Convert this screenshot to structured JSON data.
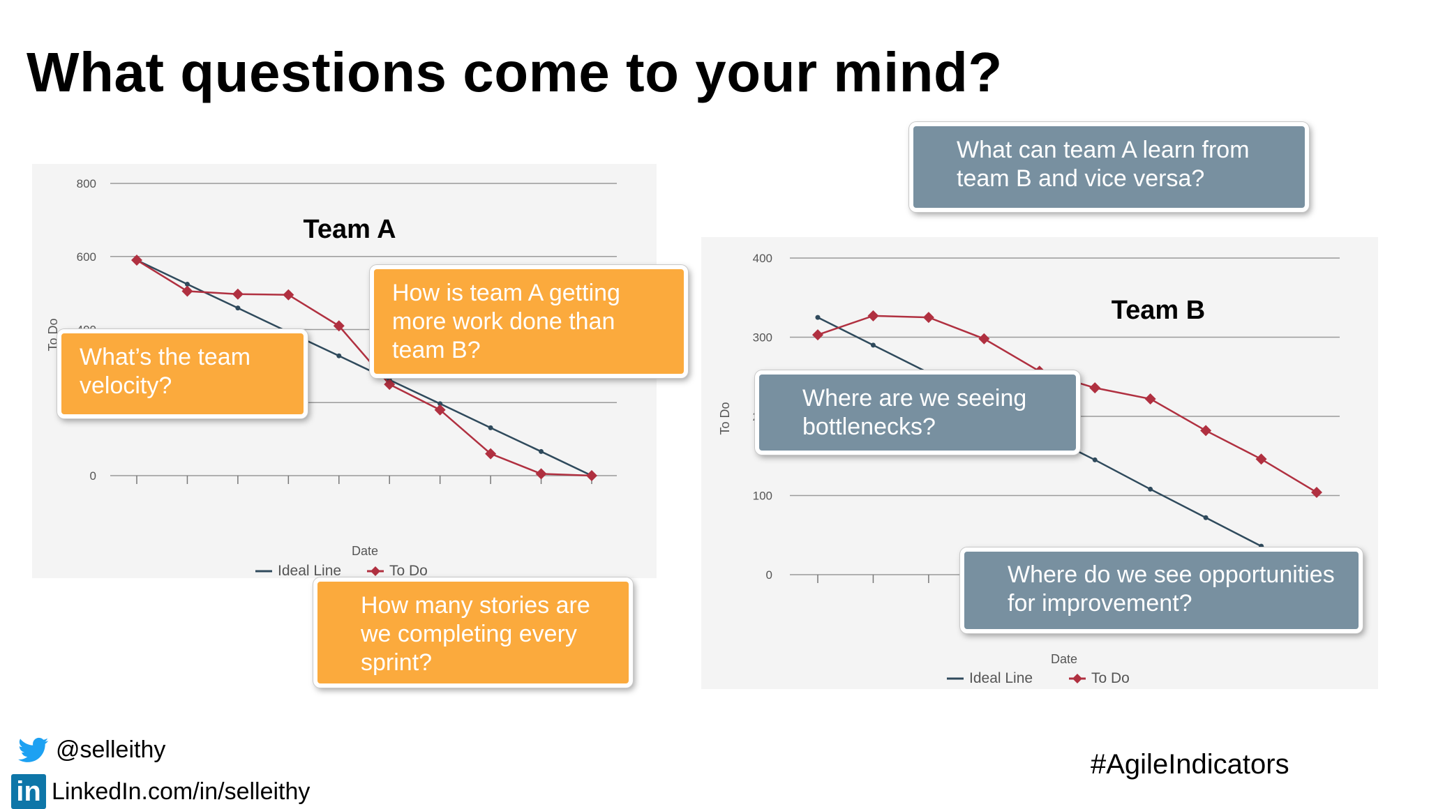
{
  "slide": {
    "title": "What questions come to your mind?",
    "hashtag": "#AgileIndicators"
  },
  "footer": {
    "twitter_handle": "@selleithy",
    "linkedin_url": "LinkedIn.com/in/selleithy",
    "linkedin_badge": "in"
  },
  "questions": {
    "velocity": [
      "What’s the team",
      "velocity?"
    ],
    "more_work": [
      "How is team A getting",
      "more work done than",
      "team B?"
    ],
    "stories": [
      "How many stories are",
      "we completing every",
      "sprint?"
    ],
    "learn": [
      "What can team A learn from",
      "team B and vice versa?"
    ],
    "bottlenecks": [
      "Where are we seeing",
      "bottlenecks?"
    ],
    "improvement": [
      "Where do we see opportunities",
      "for improvement?"
    ]
  },
  "colors": {
    "orange": "#fbaa3d",
    "slate": "#7890a0",
    "ideal_line": "#2f4a5c",
    "todo_line": "#b03040",
    "grid": "#9a9a9a",
    "twitter_blue": "#1da1f2",
    "linkedin_blue": "#0e76a8"
  },
  "chart_data": [
    {
      "type": "line",
      "title": "Team A",
      "xlabel": "Date",
      "ylabel": "To Do",
      "ylim": [
        0,
        800
      ],
      "y_ticks": [
        "0",
        "200",
        "400",
        "600",
        "800"
      ],
      "x": [
        1,
        2,
        3,
        4,
        5,
        6,
        7,
        8,
        9,
        10
      ],
      "legend_position": "bottom",
      "grid": true,
      "series": [
        {
          "name": "Ideal Line",
          "color": "#2f4a5c",
          "marker": "dot",
          "values": [
            590,
            524,
            459,
            393,
            328,
            262,
            197,
            131,
            66,
            0
          ]
        },
        {
          "name": "To Do",
          "color": "#b03040",
          "marker": "diamond",
          "values": [
            590,
            505,
            497,
            495,
            410,
            250,
            180,
            60,
            5,
            0
          ]
        }
      ]
    },
    {
      "type": "line",
      "title": "Team B",
      "xlabel": "Date",
      "ylabel": "To Do",
      "ylim": [
        0,
        400
      ],
      "y_ticks": [
        "0",
        "100",
        "200",
        "300",
        "400"
      ],
      "x": [
        1,
        2,
        3,
        4,
        5,
        6,
        7,
        8,
        9,
        10
      ],
      "legend_position": "bottom",
      "grid": true,
      "series": [
        {
          "name": "Ideal Line",
          "color": "#2f4a5c",
          "marker": "dot",
          "values": [
            325,
            290,
            255,
            217,
            180,
            145,
            108,
            72,
            36,
            0
          ]
        },
        {
          "name": "To Do",
          "color": "#b03040",
          "marker": "diamond",
          "values": [
            303,
            327,
            325,
            298,
            257,
            236,
            222,
            182,
            146,
            104
          ]
        }
      ]
    }
  ]
}
